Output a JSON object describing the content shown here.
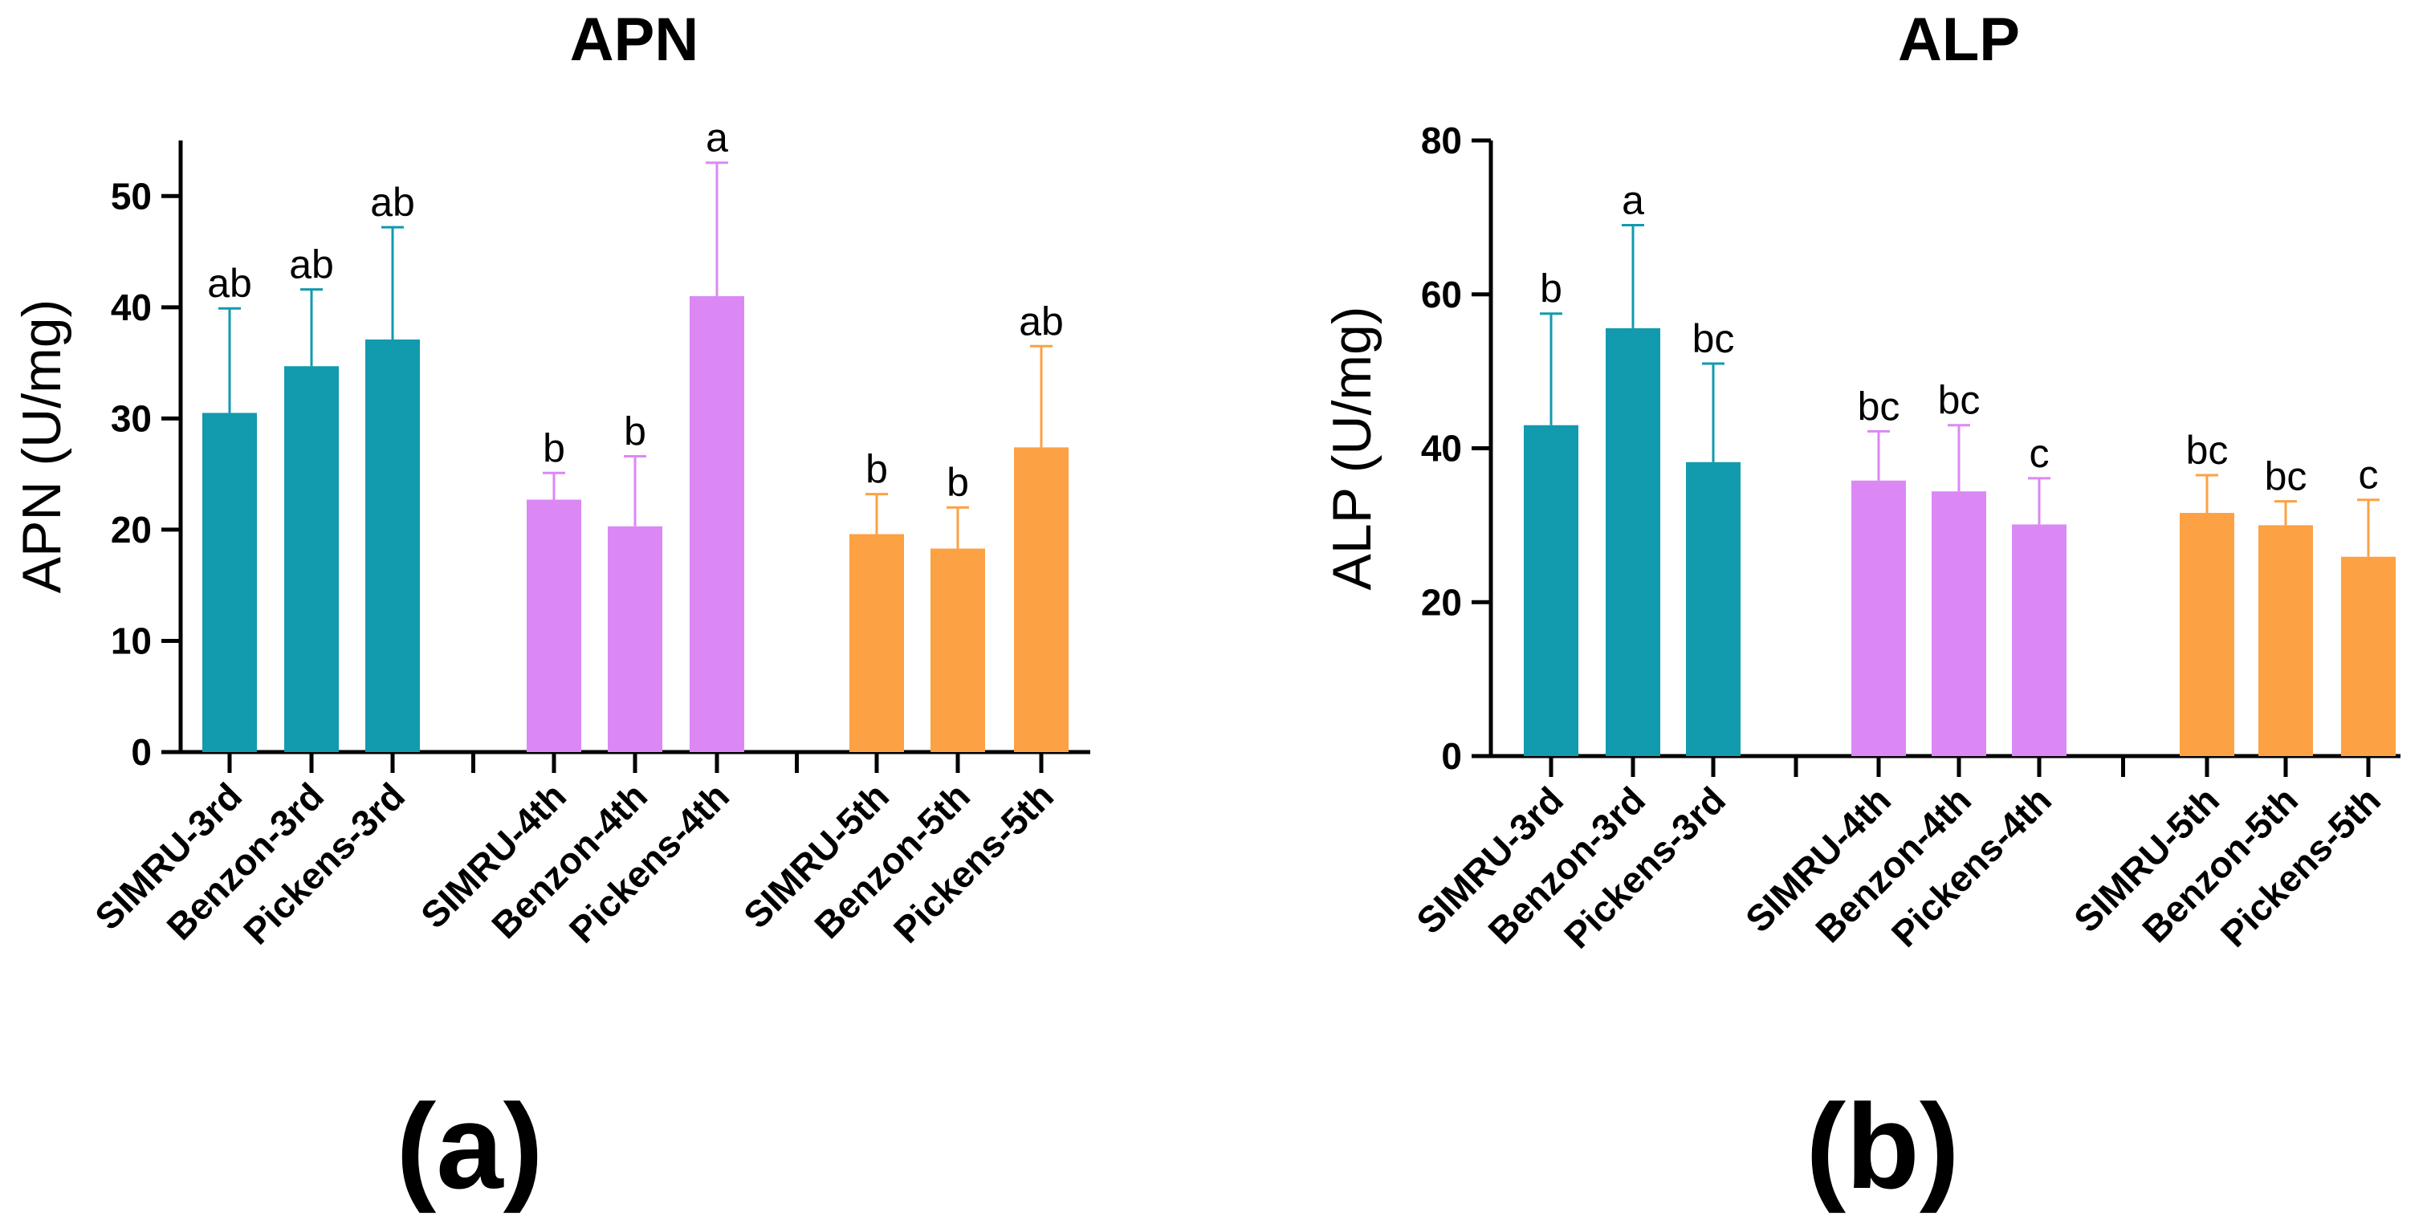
{
  "chart_data": [
    {
      "type": "bar",
      "title": "APN",
      "panel_label": "(a)",
      "ylabel": "APN (U/mg)",
      "xlabel": "",
      "ylim": [
        0,
        55
      ],
      "yticks": [
        0,
        10,
        20,
        30,
        40,
        50
      ],
      "grid": false,
      "groups": [
        {
          "color": "#129aae",
          "bars": [
            {
              "label": "SIMRU-3rd",
              "value": 30.5,
              "error": 9.4,
              "sig": "ab"
            },
            {
              "label": "Benzon-3rd",
              "value": 34.7,
              "error": 6.9,
              "sig": "ab"
            },
            {
              "label": "Pickens-3rd",
              "value": 37.1,
              "error": 10.1,
              "sig": "ab"
            }
          ]
        },
        {
          "color": "#db88f5",
          "bars": [
            {
              "label": "SIMRU-4th",
              "value": 22.7,
              "error": 2.4,
              "sig": "b"
            },
            {
              "label": "Benzon-4th",
              "value": 20.3,
              "error": 6.3,
              "sig": "b"
            },
            {
              "label": "Pickens-4th",
              "value": 41.0,
              "error": 12.0,
              "sig": "a"
            }
          ]
        },
        {
          "color": "#fca144",
          "bars": [
            {
              "label": "SIMRU-5th",
              "value": 19.6,
              "error": 3.6,
              "sig": "b"
            },
            {
              "label": "Benzon-5th",
              "value": 18.3,
              "error": 3.7,
              "sig": "b"
            },
            {
              "label": "Pickens-5th",
              "value": 27.4,
              "error": 9.1,
              "sig": "ab"
            }
          ]
        }
      ]
    },
    {
      "type": "bar",
      "title": "ALP",
      "panel_label": "(b)",
      "ylabel": "ALP (U/mg)",
      "xlabel": "",
      "ylim": [
        0,
        80
      ],
      "yticks": [
        0,
        20,
        40,
        60,
        80
      ],
      "grid": false,
      "groups": [
        {
          "color": "#129aae",
          "bars": [
            {
              "label": "SIMRU-3rd",
              "value": 43.0,
              "error": 14.5,
              "sig": "b"
            },
            {
              "label": "Benzon-3rd",
              "value": 55.6,
              "error": 13.4,
              "sig": "a"
            },
            {
              "label": "Pickens-3rd",
              "value": 38.2,
              "error": 12.8,
              "sig": "bc"
            }
          ]
        },
        {
          "color": "#db88f5",
          "bars": [
            {
              "label": "SIMRU-4th",
              "value": 35.8,
              "error": 6.4,
              "sig": "bc"
            },
            {
              "label": "Benzon-4th",
              "value": 34.4,
              "error": 8.6,
              "sig": "bc"
            },
            {
              "label": "Pickens-4th",
              "value": 30.1,
              "error": 6.0,
              "sig": "c"
            }
          ]
        },
        {
          "color": "#fca144",
          "bars": [
            {
              "label": "SIMRU-5th",
              "value": 31.6,
              "error": 4.9,
              "sig": "bc"
            },
            {
              "label": "Benzon-5th",
              "value": 30.0,
              "error": 3.1,
              "sig": "bc"
            },
            {
              "label": "Pickens-5th",
              "value": 25.9,
              "error": 7.4,
              "sig": "c"
            }
          ]
        }
      ]
    }
  ]
}
